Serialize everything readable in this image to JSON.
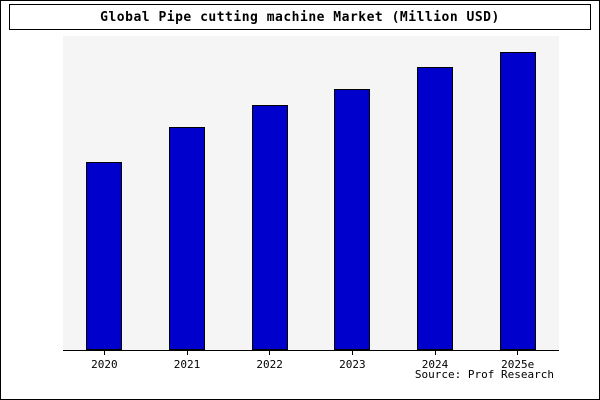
{
  "chart_data": {
    "type": "bar",
    "title": "Global Pipe cutting machine Market (Million USD)",
    "categories": [
      "2020",
      "2021",
      "2022",
      "2023",
      "2024",
      "2025e"
    ],
    "values": [
      60,
      71,
      78,
      83,
      90,
      95
    ],
    "xlabel": "",
    "ylabel": "",
    "ylim": [
      0,
      100
    ],
    "grid": false,
    "legend_position": "none",
    "y_tick_labels_visible": false
  },
  "source": "Source: Prof Research",
  "colors": {
    "bar": "#0000CD",
    "bar_border": "#000000",
    "plot_background": "#f5f5f5",
    "frame_border": "#000000"
  }
}
